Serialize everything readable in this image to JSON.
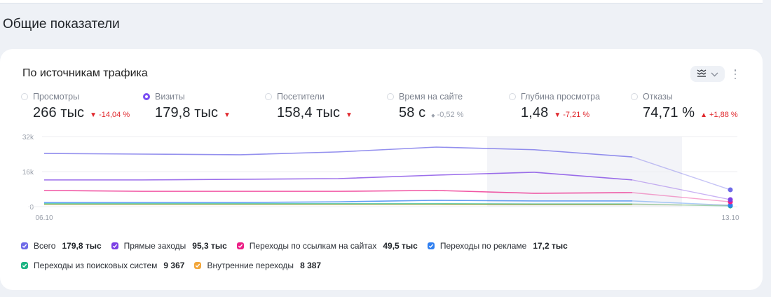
{
  "section_title": "Общие показатели",
  "card": {
    "title": "По источникам трафика",
    "chart_type_icon": "line-chart-icon",
    "chevron_icon": "chevron-down-icon",
    "more_icon": "more-vertical-icon"
  },
  "metrics": [
    {
      "label": "Просмотры",
      "value": "266 тыс",
      "delta": "-14,04 %",
      "direction": "down",
      "selected": false
    },
    {
      "label": "Визиты",
      "value": "179,8 тыс",
      "delta": "",
      "direction": "down",
      "selected": true
    },
    {
      "label": "Посетители",
      "value": "158,4 тыс",
      "delta": "",
      "direction": "down",
      "selected": false
    },
    {
      "label": "Время на сайте",
      "value": "58 с",
      "delta": "-0,52 %",
      "direction": "neutral",
      "selected": false
    },
    {
      "label": "Глубина просмотра",
      "value": "1,48",
      "delta": "-7,21 %",
      "direction": "down",
      "selected": false
    },
    {
      "label": "Отказы",
      "value": "74,71 %",
      "delta": "+1,88 %",
      "direction": "up",
      "selected": false
    }
  ],
  "legend": [
    {
      "label": "Всего",
      "value": "179,8 тыс",
      "color": "#6f6ae8"
    },
    {
      "label": "Прямые заходы",
      "value": "95,3 тыс",
      "color": "#7b3fe4"
    },
    {
      "label": "Переходы по ссылкам на сайтах",
      "value": "49,5 тыс",
      "color": "#ec1f86"
    },
    {
      "label": "Переходы по рекламе",
      "value": "17,2 тыс",
      "color": "#2f7ff0"
    },
    {
      "label": "Переходы из поисковых систем",
      "value": "9 367",
      "color": "#1cb482"
    },
    {
      "label": "Внутренние переходы",
      "value": "8 387",
      "color": "#f2a63a"
    }
  ],
  "chart_data": {
    "type": "line",
    "title": "По источникам трафика",
    "xlabel": "",
    "ylabel": "Визиты",
    "x": [
      "06.10",
      "07.10",
      "08.10",
      "09.10",
      "10.10",
      "11.10",
      "12.10",
      "13.10"
    ],
    "x_tick_labels": [
      "06.10",
      "13.10"
    ],
    "y_tick_labels": [
      "0",
      "16k",
      "32k"
    ],
    "ylim": [
      0,
      32000
    ],
    "grid": true,
    "highlight_range": [
      "11.10",
      "12.10"
    ],
    "legend_position": "bottom",
    "series": [
      {
        "name": "Всего",
        "color": "#6f6ae8",
        "values": [
          24300,
          24000,
          23700,
          25000,
          27200,
          26000,
          22700,
          7700
        ]
      },
      {
        "name": "Прямые заходы",
        "color": "#7b3fe4",
        "values": [
          12200,
          12200,
          12500,
          12800,
          14400,
          15700,
          12200,
          3200
        ]
      },
      {
        "name": "Переходы по ссылкам на сайтах",
        "color": "#ec1f86",
        "values": [
          7400,
          7000,
          7000,
          7000,
          7400,
          6100,
          6400,
          2200
        ]
      },
      {
        "name": "Переходы по рекламе",
        "color": "#2f7ff0",
        "values": [
          1900,
          1900,
          1900,
          2200,
          2900,
          2600,
          2600,
          600
        ]
      },
      {
        "name": "Переходы из поисковых систем",
        "color": "#1cb482",
        "values": [
          1300,
          1300,
          1300,
          1300,
          1300,
          1200,
          1200,
          300
        ]
      },
      {
        "name": "Внутренние переходы",
        "color": "#f2a63a",
        "values": [
          1000,
          1000,
          1000,
          1000,
          1000,
          900,
          900,
          600
        ]
      }
    ]
  }
}
